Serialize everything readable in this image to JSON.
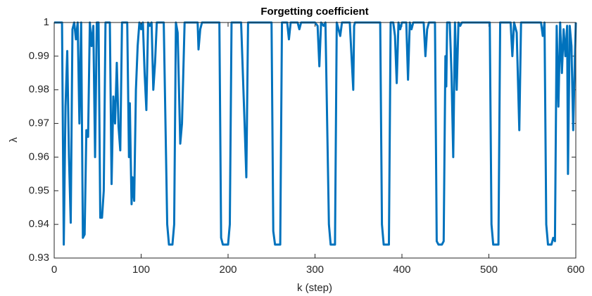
{
  "chart_data": {
    "type": "line",
    "title": "Forgetting coefficient",
    "xlabel": "k (step)",
    "ylabel": "λ",
    "xlim": [
      0,
      600
    ],
    "ylim": [
      0.93,
      1
    ],
    "xticks": [
      0,
      100,
      200,
      300,
      400,
      500,
      600
    ],
    "yticks": [
      0.93,
      0.94,
      0.95,
      0.96,
      0.97,
      0.98,
      0.99,
      1
    ],
    "grid": false,
    "series": [
      {
        "color": "#0072bd",
        "x": [
          0,
          9,
          11,
          13,
          15,
          17,
          19,
          21,
          23,
          25,
          27,
          29,
          31,
          33,
          35,
          37,
          39,
          41,
          43,
          45,
          47,
          49,
          51,
          53,
          55,
          57,
          59,
          64,
          66,
          68,
          70,
          72,
          74,
          76,
          78,
          84,
          86,
          87,
          88,
          89,
          90,
          92,
          94,
          96,
          98,
          100,
          102,
          104,
          106,
          108,
          110,
          112,
          114,
          116,
          118,
          126,
          130,
          132,
          136,
          138,
          140,
          142,
          145,
          147,
          150,
          165,
          166,
          168,
          170,
          190,
          192,
          194,
          200,
          202,
          204,
          215,
          219,
          221,
          223,
          250,
          252,
          254,
          260,
          262,
          268,
          270,
          272,
          280,
          282,
          284,
          300,
          303,
          305,
          307,
          310,
          312,
          316,
          318,
          323,
          325,
          329,
          331,
          340,
          342,
          344,
          345,
          346,
          375,
          377,
          379,
          385,
          387,
          390,
          392,
          394,
          396,
          398,
          400,
          405,
          407,
          409,
          411,
          413,
          425,
          427,
          429,
          431,
          438,
          440,
          442,
          446,
          448,
          450,
          451,
          452,
          455,
          457,
          459,
          461,
          463,
          465,
          467,
          469,
          501,
          503,
          505,
          511,
          513,
          525,
          527,
          529,
          532,
          535,
          537,
          560,
          562,
          564,
          566,
          568,
          572,
          574,
          576,
          578,
          580,
          582,
          584,
          586,
          588,
          590,
          591,
          593,
          595,
          597,
          599,
          600
        ],
        "values": [
          1,
          1,
          0.934,
          0.975,
          0.9915,
          0.96,
          0.9405,
          0.998,
          1,
          0.995,
          1,
          0.97,
          1,
          0.936,
          0.937,
          0.968,
          0.966,
          1,
          0.993,
          0.999,
          0.96,
          1,
          1,
          0.942,
          0.942,
          0.95,
          1,
          1,
          0.952,
          0.978,
          0.97,
          0.988,
          0.969,
          0.962,
          1,
          1,
          0.96,
          0.976,
          0.96,
          0.946,
          0.954,
          0.947,
          0.98,
          0.993,
          1,
          0.998,
          1,
          0.985,
          0.974,
          1,
          0.999,
          1,
          0.98,
          0.988,
          1,
          1,
          0.94,
          0.934,
          0.934,
          0.94,
          1,
          0.997,
          0.964,
          0.97,
          1,
          1,
          0.992,
          0.998,
          1,
          1,
          0.936,
          0.934,
          0.934,
          0.94,
          1,
          1,
          0.97,
          0.954,
          1,
          1,
          0.938,
          0.934,
          0.934,
          1,
          1,
          0.995,
          1,
          1,
          0.998,
          1,
          1,
          0.999,
          0.987,
          1,
          0.999,
          1,
          0.94,
          0.934,
          0.934,
          1,
          0.996,
          1,
          1,
          0.99,
          0.98,
          0.999,
          1,
          1,
          0.94,
          0.934,
          0.934,
          1,
          1,
          0.996,
          0.982,
          1,
          0.998,
          1,
          1,
          0.983,
          1,
          0.998,
          1,
          1,
          0.99,
          0.998,
          1,
          1,
          0.935,
          0.934,
          0.934,
          0.935,
          0.99,
          0.981,
          1,
          1,
          0.985,
          0.96,
          1,
          0.98,
          1,
          0.999,
          1,
          1,
          0.94,
          0.934,
          0.934,
          1,
          1,
          0.99,
          1,
          0.997,
          0.968,
          1,
          1,
          0.996,
          1,
          0.94,
          0.934,
          0.934,
          0.936,
          0.935,
          0.999,
          0.975,
          1,
          0.985,
          0.998,
          0.99,
          0.999,
          0.955,
          0.999,
          0.993,
          0.968,
          0.99,
          1
        ]
      }
    ]
  }
}
